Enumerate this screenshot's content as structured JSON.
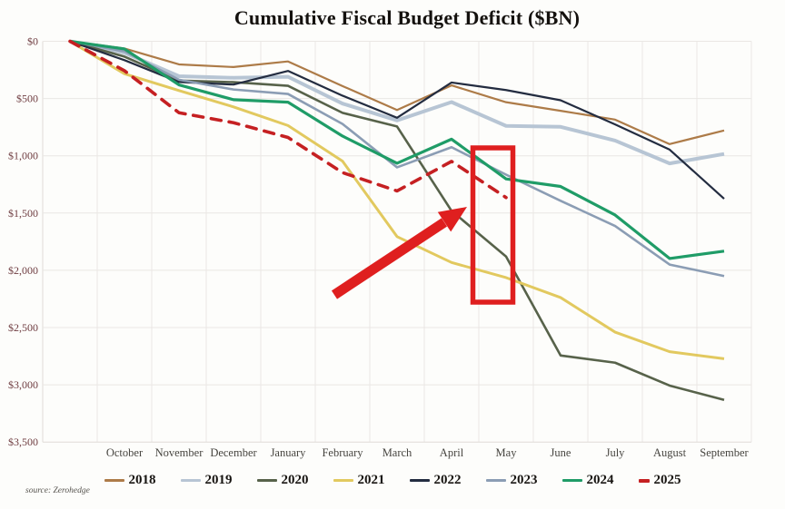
{
  "source_note": "source: Zerohedge",
  "chart_data": {
    "type": "line",
    "title": "Cumulative Fiscal Budget Deficit ($BN)",
    "categories": [
      "October",
      "November",
      "December",
      "January",
      "February",
      "March",
      "April",
      "May",
      "June",
      "July",
      "August",
      "September"
    ],
    "y_tick_labels": [
      "$0",
      "$500",
      "$1,000",
      "$1,500",
      "$2,000",
      "$2,500",
      "$3,000",
      "$3,500"
    ],
    "y_axis": {
      "min": 0,
      "max": 3500,
      "tick_interval": 500,
      "inverted": true,
      "unit": "$BN deficit"
    },
    "grid": true,
    "legend_position": "bottom",
    "start_at_zero": true,
    "series": [
      {
        "name": "2018",
        "color": "#ad7b48",
        "width": 2.2,
        "dash": null,
        "values": [
          63,
          202,
          225,
          176,
          391,
          600,
          385,
          532,
          607,
          684,
          898,
          779
        ]
      },
      {
        "name": "2019",
        "color": "#b7c5d4",
        "width": 4,
        "dash": null,
        "values": [
          100,
          305,
          319,
          310,
          544,
          691,
          531,
          739,
          747,
          867,
          1067,
          984
        ]
      },
      {
        "name": "2020",
        "color": "#57624a",
        "width": 2.6,
        "dash": null,
        "values": [
          134,
          343,
          357,
          389,
          625,
          744,
          1481,
          1880,
          2744,
          2807,
          3007,
          3132
        ]
      },
      {
        "name": "2021",
        "color": "#e2c95f",
        "width": 3,
        "dash": null,
        "values": [
          284,
          430,
          573,
          736,
          1047,
          1706,
          1932,
          2064,
          2238,
          2540,
          2711,
          2772
        ]
      },
      {
        "name": "2022",
        "color": "#232c40",
        "width": 2.2,
        "dash": null,
        "values": [
          165,
          356,
          378,
          259,
          475,
          668,
          360,
          426,
          515,
          726,
          946,
          1375
        ]
      },
      {
        "name": "2023",
        "color": "#8b9db4",
        "width": 2.6,
        "dash": null,
        "values": [
          88,
          336,
          421,
          460,
          722,
          1101,
          925,
          1165,
          1393,
          1613,
          1950,
          2050
        ]
      },
      {
        "name": "2024",
        "color": "#1f9c67",
        "width": 3.2,
        "dash": null,
        "values": [
          67,
          381,
          510,
          532,
          828,
          1065,
          855,
          1202,
          1268,
          1517,
          1897,
          1833
        ]
      },
      {
        "name": "2025",
        "color": "#c52022",
        "width": 3.6,
        "dash": "11 9",
        "values": [
          257,
          624,
          711,
          840,
          1147,
          1307,
          1049,
          1365
        ]
      }
    ],
    "annotations": {
      "highlight_box": {
        "color": "#df1f1f",
        "highlights": "May column"
      },
      "arrow": {
        "color": "#df1f1f",
        "points_to": "2025 dashed line at May"
      }
    }
  }
}
